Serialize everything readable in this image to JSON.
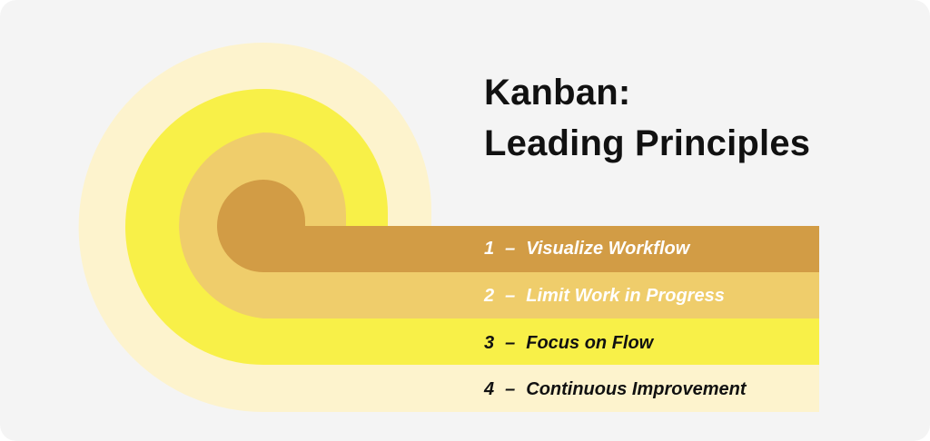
{
  "title": {
    "line1": "Kanban:",
    "line2": "Leading Principles"
  },
  "principles": [
    {
      "number": "1",
      "separator": "–",
      "label": "Visualize Workflow",
      "band_color": "#d29c45",
      "text_color": "#ffffff"
    },
    {
      "number": "2",
      "separator": "–",
      "label": "Limit Work in Progress",
      "band_color": "#efcd6b",
      "text_color": "#ffffff"
    },
    {
      "number": "3",
      "separator": "–",
      "label": "Focus on Flow",
      "band_color": "#f8f048",
      "text_color": "#111111"
    },
    {
      "number": "4",
      "separator": "–",
      "label": "Continuous Improvement",
      "band_color": "#fdf3cd",
      "text_color": "#111111"
    }
  ],
  "colors": {
    "background": "#f4f4f4",
    "title_text": "#111111"
  }
}
